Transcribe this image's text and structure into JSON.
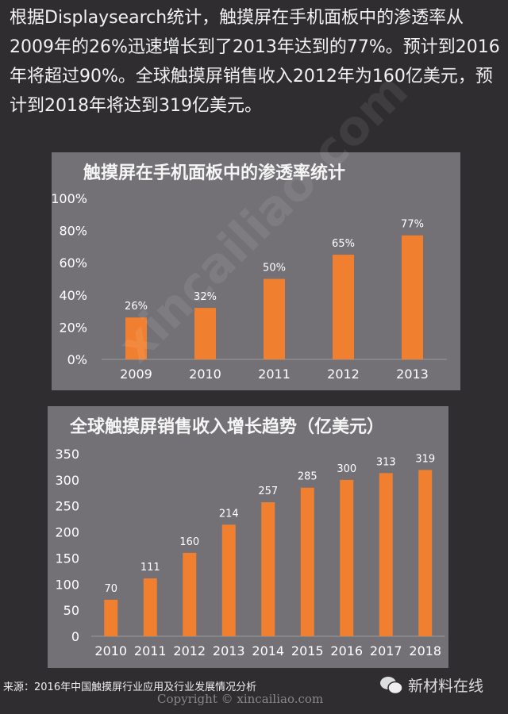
{
  "intro": "根据Displaysearch统计，触摸屏在手机面板中的渗透率从2009年的26%迅速增长到了2013年达到的77%。预计到2016年将超过90%。全球触摸屏销售收入2012年为160亿美元，预计到2018年将达到319亿美元。",
  "source": "来源：2016年中国触摸屏行业应用及行业发展情况分析",
  "copyright": "Copyright © xincailiao.com",
  "brand": "新材料在线",
  "watermark": "xincailiao.com",
  "colors": {
    "bar": "#f07f2f",
    "panel": "#737176",
    "background": "#2f2d30"
  },
  "chart_data": [
    {
      "type": "bar",
      "title": "触摸屏在手机面板中的渗透率统计",
      "categories": [
        "2009",
        "2010",
        "2011",
        "2012",
        "2013"
      ],
      "values": [
        26,
        32,
        50,
        65,
        77
      ],
      "data_labels": [
        "26%",
        "32%",
        "50%",
        "65%",
        "77%"
      ],
      "ylim": [
        0,
        100
      ],
      "yticks": [
        "0%",
        "20%",
        "40%",
        "60%",
        "80%",
        "100%"
      ],
      "grid": false
    },
    {
      "type": "bar",
      "title": "全球触摸屏销售收入增长趋势（亿美元）",
      "categories": [
        "2010",
        "2011",
        "2012",
        "2013",
        "2014",
        "2015",
        "2016",
        "2017",
        "2018"
      ],
      "values": [
        70,
        111,
        160,
        214,
        257,
        285,
        300,
        313,
        319
      ],
      "ylim": [
        0,
        350
      ],
      "yticks": [
        "0",
        "50",
        "100",
        "150",
        "200",
        "250",
        "300",
        "350"
      ],
      "grid": false
    }
  ]
}
